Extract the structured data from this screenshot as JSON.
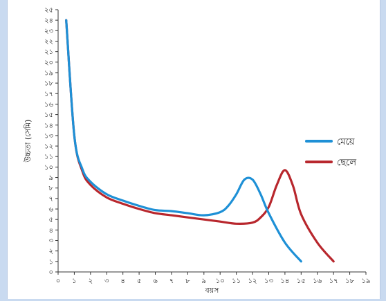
{
  "chart_data": {
    "type": "line",
    "xlabel": "বয়স",
    "ylabel": "উচ্চতা (সেমি)",
    "x_ticks": [
      "০",
      "১",
      "২",
      "৩",
      "৪",
      "৫",
      "৬",
      "৭",
      "৮",
      "৯",
      "১০",
      "১১",
      "১২",
      "১৩",
      "১৪",
      "১৫",
      "১৬",
      "১৭",
      "১৮",
      "১৯"
    ],
    "y_ticks": [
      "০",
      "১",
      "২",
      "৩",
      "৪",
      "৫",
      "৬",
      "৭",
      "৮",
      "৯",
      "১০",
      "১১",
      "১২",
      "১৩",
      "১৪",
      "১৫",
      "১৬",
      "১৭",
      "১৮",
      "১৯",
      "২০",
      "২১",
      "২২",
      "২৩",
      "২৪",
      "২৫"
    ],
    "xlim": [
      0,
      19
    ],
    "ylim": [
      0,
      25
    ],
    "grid": false,
    "legend_position": "right",
    "series": [
      {
        "name": "মেয়ে",
        "color": "#1e90d6",
        "x": [
          0.5,
          1,
          1.5,
          2,
          3,
          4,
          5,
          6,
          7,
          8,
          9,
          10,
          10.5,
          11,
          11.5,
          12,
          12.5,
          13,
          14,
          15
        ],
        "y": [
          24,
          13,
          9.8,
          8.6,
          7.4,
          6.8,
          6.3,
          5.9,
          5.8,
          5.6,
          5.4,
          5.7,
          6.3,
          7.4,
          8.8,
          8.8,
          7.4,
          5.6,
          2.8,
          1
        ]
      },
      {
        "name": "ছেলে",
        "color": "#b8272d",
        "x": [
          0.5,
          1,
          1.5,
          2,
          3,
          4,
          5,
          6,
          7,
          8,
          9,
          10,
          11,
          12,
          12.5,
          13,
          13.5,
          14,
          14.5,
          15,
          16,
          17
        ],
        "y": [
          24,
          13,
          9.6,
          8.3,
          7.1,
          6.5,
          6.0,
          5.6,
          5.4,
          5.2,
          5.0,
          4.8,
          4.6,
          4.7,
          5.2,
          6.2,
          8.3,
          9.7,
          8.2,
          5.5,
          2.8,
          1
        ]
      }
    ]
  }
}
